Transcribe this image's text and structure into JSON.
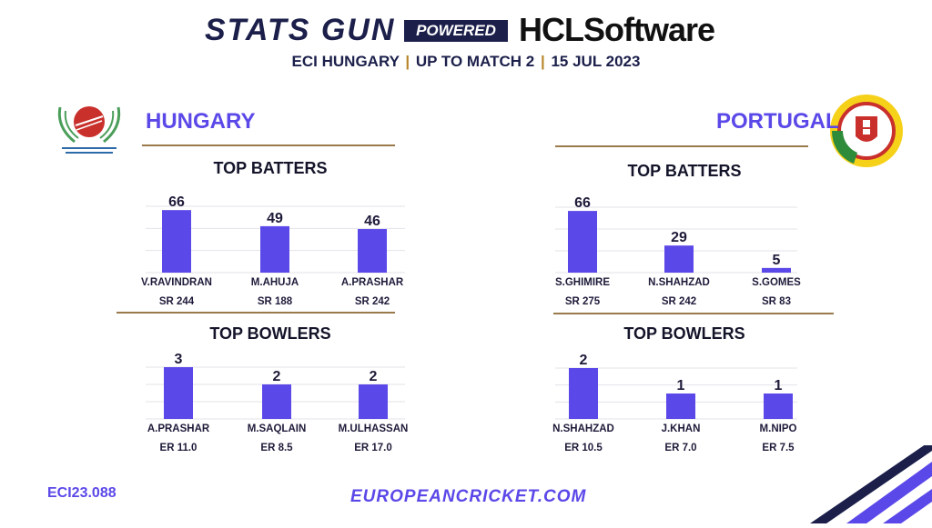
{
  "header": {
    "brand": "STATS GUN",
    "powered_by": "POWERED BY",
    "sponsor_a": "HCL",
    "sponsor_b": "Software",
    "sub_event": "ECI HUNGARY",
    "sub_scope": "UP TO MATCH 2",
    "sub_date": "15 JUL 2023",
    "sep": "|"
  },
  "teams": {
    "left": {
      "name": "HUNGARY"
    },
    "right": {
      "name": "PORTUGAL"
    }
  },
  "sections": {
    "batters": "TOP BATTERS",
    "bowlers": "TOP BOWLERS"
  },
  "footer": {
    "code": "ECI23.088",
    "url": "EUROPEANCRICKET.COM"
  },
  "colors": {
    "bar": "#5b48e8",
    "accent": "#9a7a4a",
    "navy": "#1b1f4a"
  },
  "chart_data": [
    {
      "type": "bar",
      "title": "TOP BATTERS",
      "team": "HUNGARY",
      "categories": [
        "V.RAVINDRAN",
        "M.AHUJA",
        "A.PRASHAR"
      ],
      "values": [
        66,
        49,
        46
      ],
      "sublabels": [
        "SR 244",
        "SR 188",
        "SR 242"
      ],
      "ylim": [
        0,
        70
      ]
    },
    {
      "type": "bar",
      "title": "TOP BATTERS",
      "team": "PORTUGAL",
      "categories": [
        "S.GHIMIRE",
        "N.SHAHZAD",
        "S.GOMES"
      ],
      "values": [
        66,
        29,
        5
      ],
      "sublabels": [
        "SR 275",
        "SR 242",
        "SR 83"
      ],
      "ylim": [
        0,
        70
      ]
    },
    {
      "type": "bar",
      "title": "TOP BOWLERS",
      "team": "HUNGARY",
      "categories": [
        "A.PRASHAR",
        "M.SAQLAIN",
        "M.ULHASSAN"
      ],
      "values": [
        3,
        2,
        2
      ],
      "sublabels": [
        "ER 11.0",
        "ER 8.5",
        "ER 17.0"
      ],
      "ylim": [
        0,
        3
      ]
    },
    {
      "type": "bar",
      "title": "TOP BOWLERS",
      "team": "PORTUGAL",
      "categories": [
        "N.SHAHZAD",
        "J.KHAN",
        "M.NIPO"
      ],
      "values": [
        2,
        1,
        1
      ],
      "sublabels": [
        "ER 10.5",
        "ER 7.0",
        "ER 7.5"
      ],
      "ylim": [
        0,
        2
      ]
    }
  ]
}
